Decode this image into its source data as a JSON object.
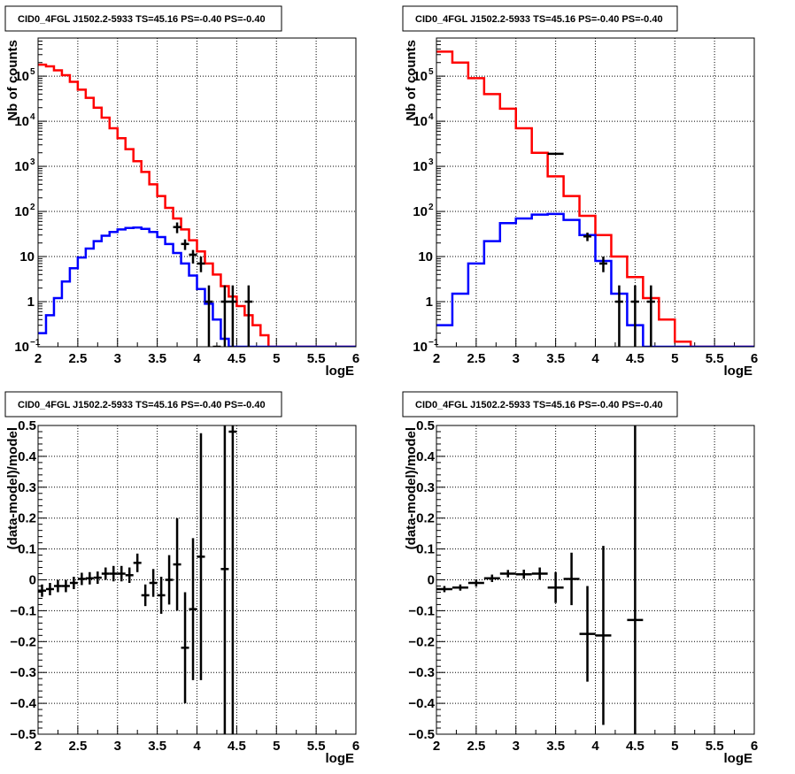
{
  "chart_data": [
    {
      "type": "histogram",
      "title": "CID0_4FGL J1502.2-5933 TS=45.16 PS=-0.40 PS=-0.40",
      "xlabel": "logE",
      "ylabel": "Nb of counts",
      "xlim": [
        2,
        6
      ],
      "ylim": [
        0.1,
        700000
      ],
      "yscale": "log",
      "grid": true,
      "x_ticks": [
        "2",
        "2.5",
        "3",
        "3.5",
        "4",
        "4.5",
        "5",
        "5.5",
        "6"
      ],
      "y_ticks": [
        {
          "v": 0.1,
          "label": "10",
          "sup": "−1"
        },
        {
          "v": 1,
          "label": "1",
          "sup": ""
        },
        {
          "v": 10,
          "label": "10",
          "sup": ""
        },
        {
          "v": 100,
          "label": "10",
          "sup": "2"
        },
        {
          "v": 1000,
          "label": "10",
          "sup": "3"
        },
        {
          "v": 10000,
          "label": "10",
          "sup": "4"
        },
        {
          "v": 100000,
          "label": "10",
          "sup": "5"
        }
      ],
      "series": [
        {
          "color": "#ff0000",
          "style": "step",
          "binwidth": 0.1,
          "x0": 2.0,
          "values": [
            180000,
            165000,
            135000,
            105000,
            75000,
            50000,
            33000,
            20000,
            12000,
            7000,
            4200,
            2400,
            1300,
            750,
            400,
            220,
            120,
            70,
            40,
            23,
            13,
            7,
            4,
            2.2,
            1.3,
            0.8,
            0.5,
            0.3,
            0.18,
            0.1,
            0.1,
            0.1,
            0.1,
            0.1,
            0.1,
            0.1,
            0.1,
            0.1,
            0.1,
            0.1
          ]
        },
        {
          "color": "#0000ff",
          "style": "step",
          "binwidth": 0.1,
          "x0": 2.0,
          "values": [
            0.2,
            0.5,
            1.2,
            2.8,
            5.5,
            9.5,
            15,
            22,
            29,
            35,
            40,
            43,
            44,
            41,
            35,
            27,
            19,
            12,
            7,
            3.8,
            1.9,
            0.9,
            0.4,
            0.15,
            0.08,
            0.08,
            0.08,
            0.08,
            0.08,
            0.08,
            0.08,
            0.08,
            0.08,
            0.08,
            0.08,
            0.08,
            0.08,
            0.08,
            0.08,
            0.08
          ]
        }
      ],
      "points": {
        "color": "#000000",
        "x": [
          3.75,
          3.85,
          3.95,
          4.05,
          4.15,
          4.25,
          4.35,
          4.45,
          4.65
        ],
        "y": [
          45,
          19,
          11,
          7,
          1,
          0.1,
          1,
          1,
          1
        ],
        "ylo": [
          33,
          14,
          7,
          4.5,
          0.1,
          0.1,
          0.1,
          0.1,
          0.1
        ],
        "yhi": [
          57,
          24,
          14,
          10,
          2.3,
          0.1,
          2.3,
          2.3,
          2.3
        ]
      }
    },
    {
      "type": "histogram",
      "title": "CID0_4FGL J1502.2-5933 TS=45.16 PS=-0.40 PS=-0.40",
      "xlabel": "logE",
      "ylabel": "Nb of counts",
      "xlim": [
        2,
        6
      ],
      "ylim": [
        0.1,
        700000
      ],
      "yscale": "log",
      "grid": true,
      "x_ticks": [
        "2",
        "2.5",
        "3",
        "3.5",
        "4",
        "4.5",
        "5",
        "5.5",
        "6"
      ],
      "y_ticks": [
        {
          "v": 0.1,
          "label": "10",
          "sup": "−1"
        },
        {
          "v": 1,
          "label": "1",
          "sup": ""
        },
        {
          "v": 10,
          "label": "10",
          "sup": ""
        },
        {
          "v": 100,
          "label": "10",
          "sup": "2"
        },
        {
          "v": 1000,
          "label": "10",
          "sup": "3"
        },
        {
          "v": 10000,
          "label": "10",
          "sup": "4"
        },
        {
          "v": 100000,
          "label": "10",
          "sup": "5"
        }
      ],
      "series": [
        {
          "color": "#ff0000",
          "style": "step",
          "binwidth": 0.2,
          "x0": 2.0,
          "values": [
            350000,
            200000,
            90000,
            40000,
            19000,
            7000,
            2000,
            600,
            220,
            80,
            30,
            10,
            3.5,
            1.2,
            0.4,
            0.13,
            0.1,
            0.1,
            0.1,
            0.1
          ]
        },
        {
          "color": "#0000ff",
          "style": "step",
          "binwidth": 0.2,
          "x0": 2.0,
          "values": [
            0.3,
            1.5,
            7,
            22,
            55,
            70,
            85,
            88,
            65,
            30,
            8,
            1.5,
            0.3,
            0.05,
            0.05,
            0.05,
            0.05,
            0.05,
            0.05,
            0.05
          ]
        },
        {
          "color": "#000000",
          "style": "step",
          "binwidth": 0.2,
          "x0": 2.0,
          "values": [
            null,
            null,
            null,
            null,
            null,
            null,
            null,
            1900,
            null,
            null,
            null,
            null,
            null,
            null,
            null,
            null,
            null,
            null,
            null,
            null
          ]
        }
      ],
      "points": {
        "color": "#000000",
        "x": [
          3.9,
          4.1,
          4.3,
          4.5,
          4.7
        ],
        "y": [
          28,
          7,
          1,
          1,
          1
        ],
        "ylo": [
          22,
          4.5,
          0.1,
          0.1,
          0.1
        ],
        "yhi": [
          34,
          10,
          2.3,
          2.3,
          2.3
        ]
      }
    },
    {
      "type": "scatter",
      "title": "CID0_4FGL J1502.2-5933 TS=45.16 PS=-0.40 PS=-0.40",
      "xlabel": "logE",
      "ylabel": "(data-model)/model",
      "xlim": [
        2,
        6
      ],
      "ylim": [
        -0.5,
        0.5
      ],
      "grid": true,
      "x_ticks": [
        "2",
        "2.5",
        "3",
        "3.5",
        "4",
        "4.5",
        "5",
        "5.5",
        "6"
      ],
      "y_ticks": [
        "−0.5",
        "−0.4",
        "−0.3",
        "−0.2",
        "−0.1",
        "0",
        "0.1",
        "0.2",
        "0.3",
        "0.4",
        "0.5"
      ],
      "xerr": 0.05,
      "points": {
        "color": "#000000",
        "x": [
          2.05,
          2.15,
          2.25,
          2.35,
          2.45,
          2.55,
          2.65,
          2.75,
          2.85,
          2.95,
          3.05,
          3.15,
          3.25,
          3.35,
          3.45,
          3.55,
          3.65,
          3.75,
          3.85,
          3.95,
          4.05,
          4.35,
          4.45
        ],
        "y": [
          -0.035,
          -0.03,
          -0.02,
          -0.02,
          -0.01,
          0.003,
          0.005,
          0.007,
          0.02,
          0.02,
          0.02,
          0.015,
          0.055,
          -0.05,
          -0.01,
          -0.05,
          0.0,
          0.05,
          -0.22,
          -0.095,
          0.075,
          0.035,
          0.48
        ],
        "yerr": [
          0.02,
          0.02,
          0.02,
          0.02,
          0.02,
          0.02,
          0.02,
          0.02,
          0.02,
          0.025,
          0.025,
          0.025,
          0.03,
          0.035,
          0.045,
          0.06,
          0.08,
          0.15,
          0.18,
          0.23,
          0.4,
          0.8,
          1.0
        ]
      }
    },
    {
      "type": "scatter",
      "title": "CID0_4FGL J1502.2-5933 TS=45.16 PS=-0.40 PS=-0.40",
      "xlabel": "logE",
      "ylabel": "(data-model)/model",
      "xlim": [
        2,
        6
      ],
      "ylim": [
        -0.5,
        0.5
      ],
      "grid": true,
      "x_ticks": [
        "2",
        "2.5",
        "3",
        "3.5",
        "4",
        "4.5",
        "5",
        "5.5",
        "6"
      ],
      "y_ticks": [
        "−0.5",
        "−0.4",
        "−0.3",
        "−0.2",
        "−0.1",
        "0",
        "0.1",
        "0.2",
        "0.3",
        "0.4",
        "0.5"
      ],
      "xerr": 0.1,
      "points": {
        "color": "#000000",
        "x": [
          2.1,
          2.3,
          2.5,
          2.7,
          2.9,
          3.1,
          3.3,
          3.5,
          3.7,
          3.9,
          4.1,
          4.5
        ],
        "y": [
          -0.03,
          -0.025,
          -0.01,
          0.005,
          0.02,
          0.018,
          0.02,
          -0.025,
          0.003,
          -0.175,
          -0.18,
          -0.13
        ],
        "yerr": [
          0.01,
          0.01,
          0.012,
          0.012,
          0.012,
          0.015,
          0.02,
          0.05,
          0.085,
          0.155,
          0.29,
          0.9
        ]
      }
    }
  ]
}
